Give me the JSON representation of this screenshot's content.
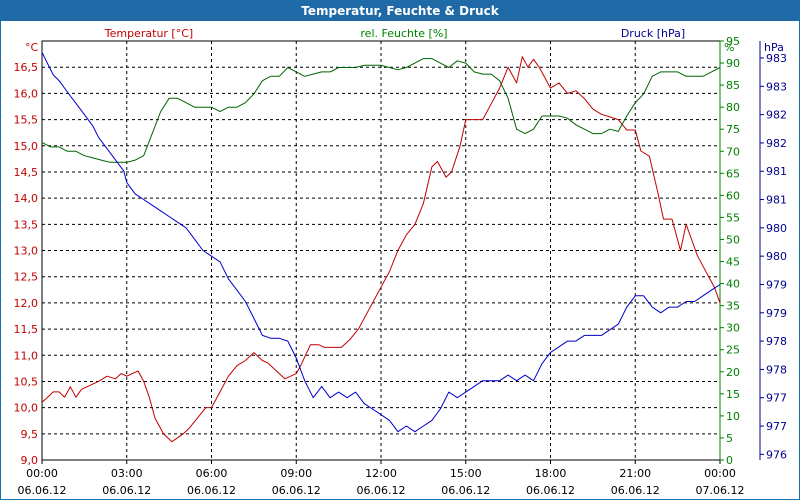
{
  "window": {
    "title": "Temperatur, Feuchte & Druck"
  },
  "chart_data": {
    "type": "line",
    "title": "Temperatur, Feuchte & Druck",
    "x": {
      "range": [
        0,
        24
      ],
      "ticks": [
        0,
        3,
        6,
        9,
        12,
        15,
        18,
        21,
        24
      ],
      "time_labels": [
        "00:00",
        "03:00",
        "06:00",
        "09:00",
        "12:00",
        "15:00",
        "18:00",
        "21:00",
        "00:00"
      ],
      "date_labels": [
        "06.06.12",
        "06.06.12",
        "06.06.12",
        "06.06.12",
        "06.06.12",
        "06.06.12",
        "06.06.12",
        "06.06.12",
        "07.06.12"
      ]
    },
    "axes": {
      "left": {
        "label": "Temperatur [°C]",
        "unit": "°C",
        "color": "#c00000",
        "range": [
          9.0,
          17.0
        ],
        "tick_labels": [
          "9,0",
          "9,5",
          "10,0",
          "10,5",
          "11,0",
          "11,5",
          "12,0",
          "12,5",
          "13,0",
          "13,5",
          "14,0",
          "14,5",
          "15,0",
          "15,5",
          "16,0",
          "16,5"
        ]
      },
      "middle": {
        "label": "rel. Feuchte [%]",
        "unit": "%",
        "color": "#008000",
        "range": [
          0,
          95
        ],
        "tick_labels": [
          "0",
          "5",
          "10",
          "15",
          "20",
          "25",
          "30",
          "35",
          "40",
          "45",
          "50",
          "55",
          "60",
          "65",
          "70",
          "75",
          "80",
          "85",
          "90",
          "95"
        ]
      },
      "right": {
        "label": "Druck [hPa]",
        "unit": "hPa",
        "color": "#00008b",
        "range": [
          975.9,
          983.3
        ],
        "tick_labels": [
          "976",
          "977",
          "977",
          "978",
          "978",
          "979",
          "979",
          "980",
          "980",
          "981",
          "981",
          "982",
          "982",
          "983",
          "983"
        ]
      }
    },
    "grid": true,
    "series": [
      {
        "name": "Temperatur",
        "axis": "left",
        "color": "#c00000",
        "x": [
          0,
          0.2,
          0.4,
          0.6,
          0.8,
          1.0,
          1.2,
          1.4,
          1.6,
          1.8,
          2.0,
          2.3,
          2.6,
          2.8,
          3.0,
          3.2,
          3.4,
          3.6,
          3.8,
          4.0,
          4.3,
          4.6,
          5.0,
          5.2,
          5.5,
          5.8,
          6.0,
          6.3,
          6.6,
          6.9,
          7.2,
          7.5,
          7.8,
          8.0,
          8.3,
          8.6,
          9.0,
          9.2,
          9.5,
          9.8,
          10.0,
          10.3,
          10.6,
          10.9,
          11.2,
          11.5,
          11.8,
          12.0,
          12.3,
          12.6,
          12.9,
          13.2,
          13.5,
          13.8,
          14.0,
          14.3,
          14.5,
          14.8,
          15.0,
          15.3,
          15.6,
          15.9,
          16.2,
          16.5,
          16.8,
          17.0,
          17.2,
          17.4,
          17.6,
          17.8,
          18.0,
          18.3,
          18.6,
          18.9,
          19.2,
          19.5,
          19.8,
          20.1,
          20.4,
          20.7,
          21.0,
          21.2,
          21.5,
          21.8,
          22.0,
          22.3,
          22.6,
          22.8,
          23.0,
          23.2,
          23.4,
          23.6,
          23.8,
          24.0
        ],
        "values": [
          10.1,
          10.2,
          10.3,
          10.3,
          10.2,
          10.4,
          10.2,
          10.35,
          10.4,
          10.45,
          10.5,
          10.6,
          10.55,
          10.65,
          10.6,
          10.65,
          10.7,
          10.5,
          10.2,
          9.8,
          9.5,
          9.35,
          9.5,
          9.6,
          9.8,
          10.0,
          10.0,
          10.3,
          10.6,
          10.8,
          10.9,
          11.05,
          10.9,
          10.85,
          10.7,
          10.55,
          10.65,
          10.85,
          11.2,
          11.2,
          11.15,
          11.15,
          11.15,
          11.3,
          11.5,
          11.8,
          12.1,
          12.3,
          12.6,
          13.0,
          13.3,
          13.5,
          13.9,
          14.6,
          14.7,
          14.4,
          14.5,
          15.0,
          15.5,
          15.5,
          15.5,
          15.8,
          16.1,
          16.5,
          16.2,
          16.7,
          16.5,
          16.65,
          16.5,
          16.3,
          16.1,
          16.2,
          16.0,
          16.05,
          15.9,
          15.7,
          15.6,
          15.55,
          15.5,
          15.3,
          15.3,
          14.9,
          14.8,
          14.1,
          13.6,
          13.6,
          13.0,
          13.5,
          13.2,
          12.9,
          12.7,
          12.5,
          12.3,
          12.0
        ]
      },
      {
        "name": "rel. Feuchte",
        "axis": "middle",
        "color": "#006400",
        "x": [
          0,
          0.3,
          0.6,
          0.9,
          1.2,
          1.5,
          1.8,
          2.1,
          2.4,
          2.7,
          3.0,
          3.3,
          3.6,
          3.9,
          4.2,
          4.5,
          4.8,
          5.1,
          5.4,
          5.7,
          6.0,
          6.3,
          6.6,
          6.9,
          7.2,
          7.5,
          7.8,
          8.1,
          8.4,
          8.7,
          9.0,
          9.3,
          9.6,
          9.9,
          10.2,
          10.5,
          10.8,
          11.1,
          11.4,
          11.7,
          12.0,
          12.3,
          12.6,
          12.9,
          13.2,
          13.5,
          13.8,
          14.1,
          14.4,
          14.7,
          15.0,
          15.3,
          15.6,
          15.9,
          16.2,
          16.5,
          16.8,
          17.1,
          17.4,
          17.7,
          18.0,
          18.3,
          18.6,
          18.9,
          19.2,
          19.5,
          19.8,
          20.1,
          20.4,
          20.7,
          21.0,
          21.3,
          21.6,
          21.9,
          22.2,
          22.5,
          22.8,
          23.1,
          23.4,
          23.7,
          24.0
        ],
        "values": [
          72,
          71,
          71,
          70,
          70,
          69,
          68.5,
          68,
          67.5,
          67.5,
          67.5,
          68,
          69,
          74,
          79,
          82,
          82,
          81,
          80,
          80,
          80,
          79,
          80,
          80,
          81,
          83,
          86,
          87,
          87,
          89,
          88,
          87,
          87.5,
          88,
          88,
          89,
          89,
          89,
          89.5,
          89.5,
          89.5,
          89,
          88.5,
          89,
          90,
          91,
          91,
          90,
          89,
          90.5,
          90,
          88,
          87.5,
          87.5,
          86,
          82,
          75,
          74,
          75,
          78,
          78,
          78,
          77.5,
          76,
          75,
          74,
          74,
          75,
          74.5,
          78,
          81,
          83,
          87,
          88,
          88,
          88,
          87,
          87,
          87,
          88,
          89
        ]
      },
      {
        "name": "Druck",
        "axis": "right",
        "color": "#0000cc",
        "x": [
          0,
          0.2,
          0.4,
          0.6,
          0.9,
          1.2,
          1.5,
          1.8,
          2.0,
          2.3,
          2.6,
          2.9,
          3.0,
          3.3,
          3.6,
          3.9,
          4.2,
          4.5,
          4.8,
          5.1,
          5.4,
          5.7,
          6.0,
          6.3,
          6.6,
          6.9,
          7.2,
          7.5,
          7.8,
          8.1,
          8.4,
          8.7,
          9.0,
          9.3,
          9.6,
          9.9,
          10.2,
          10.5,
          10.8,
          11.1,
          11.4,
          11.7,
          12.0,
          12.3,
          12.6,
          12.9,
          13.2,
          13.5,
          13.8,
          14.1,
          14.4,
          14.7,
          15.0,
          15.3,
          15.6,
          15.9,
          16.2,
          16.5,
          16.8,
          17.1,
          17.4,
          17.7,
          18.0,
          18.3,
          18.6,
          18.9,
          19.2,
          19.5,
          19.8,
          20.1,
          20.4,
          20.7,
          21.0,
          21.3,
          21.6,
          21.9,
          22.2,
          22.5,
          22.8,
          23.1,
          23.4,
          23.7,
          24.0
        ],
        "values": [
          983.1,
          982.9,
          982.7,
          982.6,
          982.4,
          982.2,
          982.0,
          981.8,
          981.6,
          981.4,
          981.2,
          981.0,
          980.8,
          980.6,
          980.5,
          980.4,
          980.3,
          980.2,
          980.1,
          980.0,
          979.8,
          979.6,
          979.5,
          979.4,
          979.1,
          978.9,
          978.7,
          978.4,
          978.1,
          978.05,
          978.05,
          978.0,
          977.7,
          977.3,
          977.0,
          977.2,
          977.0,
          977.1,
          977.0,
          977.1,
          976.9,
          976.8,
          976.7,
          976.6,
          976.4,
          976.5,
          976.4,
          976.5,
          976.6,
          976.8,
          977.1,
          977.0,
          977.1,
          977.2,
          977.3,
          977.3,
          977.3,
          977.4,
          977.3,
          977.4,
          977.3,
          977.6,
          977.8,
          977.9,
          978.0,
          978.0,
          978.1,
          978.1,
          978.1,
          978.2,
          978.3,
          978.6,
          978.8,
          978.8,
          978.6,
          978.5,
          978.6,
          978.6,
          978.7,
          978.7,
          978.8,
          978.9,
          979.0
        ]
      }
    ]
  }
}
